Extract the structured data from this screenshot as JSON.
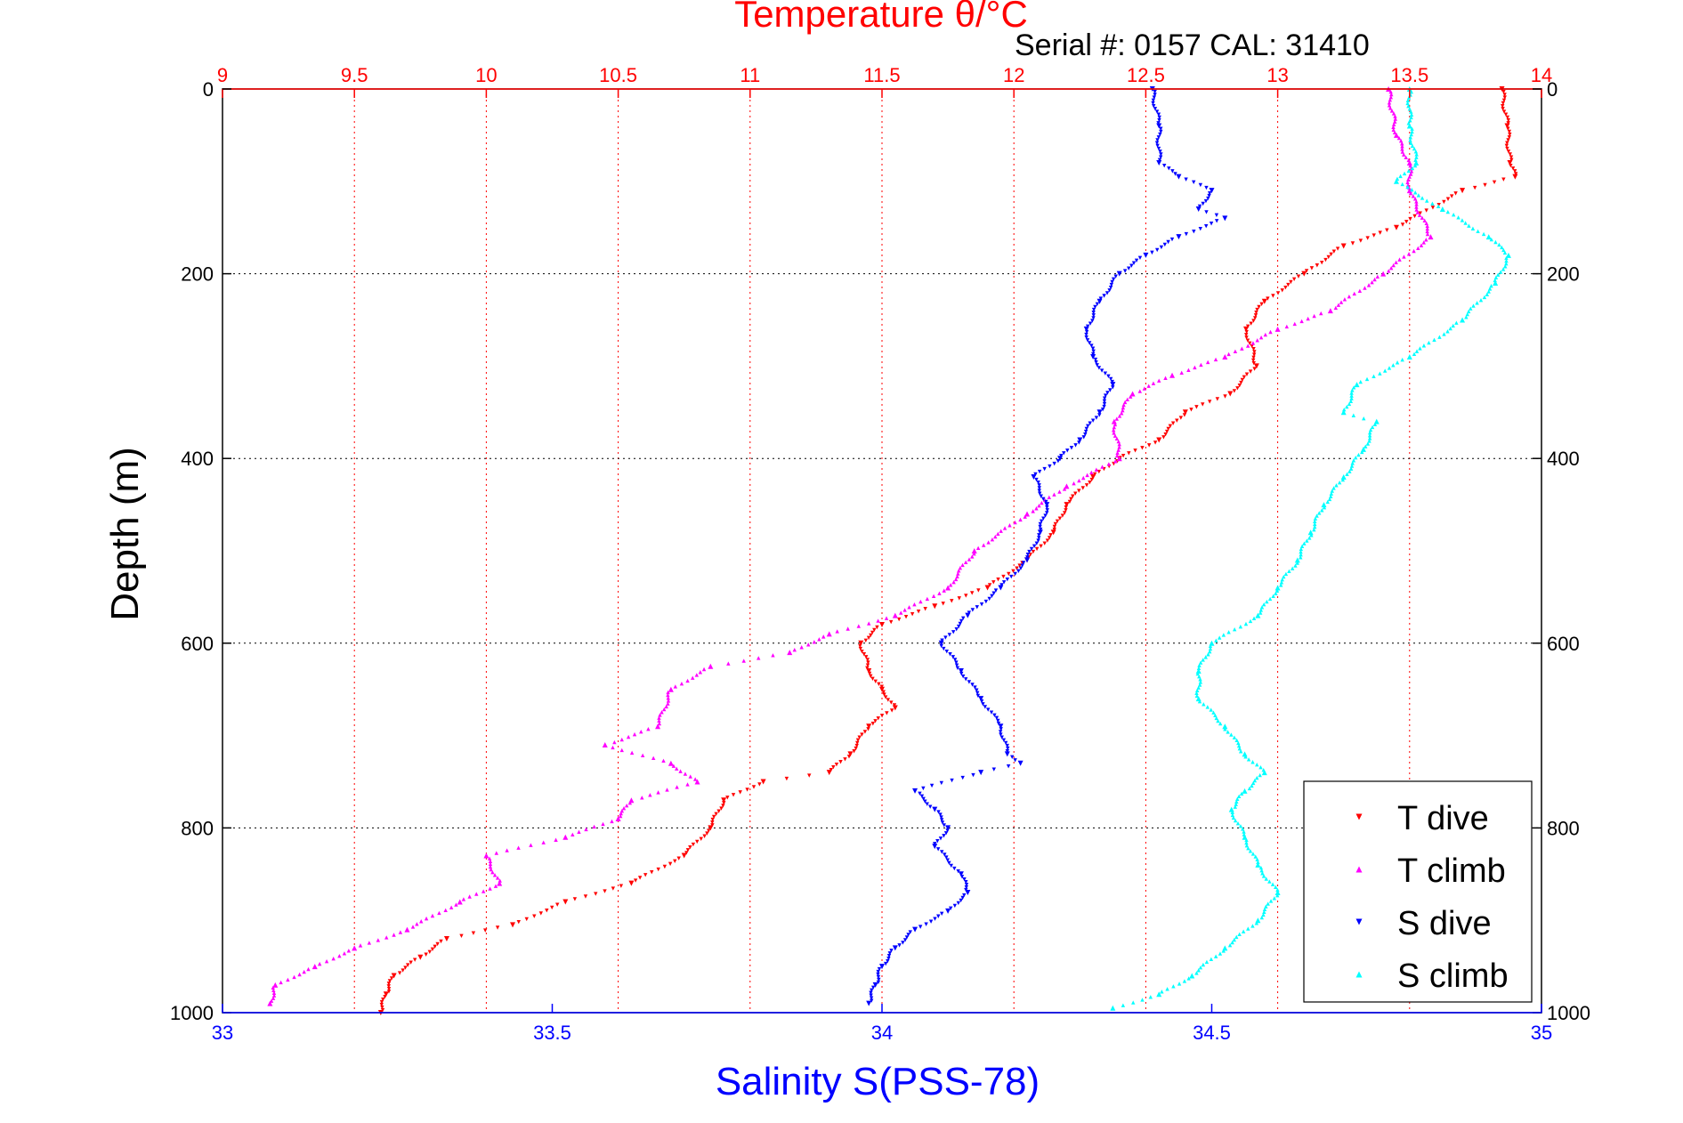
{
  "chart_data": {
    "type": "scatter",
    "title": "Temperature θ/°C",
    "subtitle": "Serial #: 0157  CAL: 31410",
    "ylabel": "Depth (m)",
    "xlabel_bottom": "Salinity S(PSS-78)",
    "temperature_axis": {
      "min": 9,
      "max": 14,
      "ticks": [
        "9",
        "9.5",
        "10",
        "10.5",
        "11",
        "11.5",
        "12",
        "12.5",
        "13",
        "13.5",
        "14"
      ]
    },
    "salinity_axis": {
      "min": 33,
      "max": 35,
      "ticks": [
        "33",
        "33.5",
        "34",
        "34.5",
        "35"
      ]
    },
    "depth_axis": {
      "min": 0,
      "max": 1000,
      "reversed": true,
      "ticks": [
        "0",
        "200",
        "400",
        "600",
        "800",
        "1000"
      ]
    },
    "grid": true,
    "legend": {
      "placement": "bottom-right"
    },
    "colors": {
      "t_dive": "#ff0000",
      "t_climb": "#ff00ff",
      "s_dive": "#0000ff",
      "s_climb": "#00ffff",
      "temp_axis": "#ff0000",
      "sal_axis": "#0000ff",
      "depth_axis": "#000000"
    },
    "series": [
      {
        "name": "T dive",
        "axis": "temperature",
        "color": "#ff0000",
        "marker": "triangle-down",
        "points": [
          [
            13.85,
            0
          ],
          [
            13.87,
            40
          ],
          [
            13.88,
            80
          ],
          [
            13.9,
            95
          ],
          [
            13.7,
            110
          ],
          [
            13.45,
            150
          ],
          [
            13.25,
            170
          ],
          [
            13.1,
            200
          ],
          [
            12.95,
            230
          ],
          [
            12.88,
            260
          ],
          [
            12.92,
            300
          ],
          [
            12.82,
            330
          ],
          [
            12.65,
            350
          ],
          [
            12.55,
            380
          ],
          [
            12.4,
            400
          ],
          [
            12.3,
            420
          ],
          [
            12.2,
            450
          ],
          [
            12.15,
            480
          ],
          [
            12.05,
            510
          ],
          [
            11.9,
            540
          ],
          [
            11.7,
            560
          ],
          [
            11.5,
            580
          ],
          [
            11.42,
            600
          ],
          [
            11.45,
            630
          ],
          [
            11.5,
            650
          ],
          [
            11.55,
            670
          ],
          [
            11.45,
            690
          ],
          [
            11.38,
            720
          ],
          [
            11.3,
            740
          ],
          [
            11.05,
            750
          ],
          [
            10.9,
            770
          ],
          [
            10.85,
            800
          ],
          [
            10.75,
            830
          ],
          [
            10.55,
            860
          ],
          [
            10.3,
            880
          ],
          [
            10.1,
            905
          ],
          [
            9.85,
            920
          ],
          [
            9.75,
            940
          ],
          [
            9.65,
            960
          ],
          [
            9.62,
            980
          ],
          [
            9.6,
            1000
          ]
        ]
      },
      {
        "name": "T climb",
        "axis": "temperature",
        "color": "#ff00ff",
        "marker": "triangle-up",
        "points": [
          [
            13.42,
            0
          ],
          [
            13.45,
            50
          ],
          [
            13.5,
            80
          ],
          [
            13.5,
            110
          ],
          [
            13.58,
            160
          ],
          [
            13.4,
            200
          ],
          [
            13.2,
            240
          ],
          [
            13.0,
            260
          ],
          [
            12.8,
            290
          ],
          [
            12.6,
            310
          ],
          [
            12.45,
            330
          ],
          [
            12.38,
            360
          ],
          [
            12.4,
            400
          ],
          [
            12.2,
            430
          ],
          [
            12.05,
            460
          ],
          [
            11.85,
            500
          ],
          [
            11.75,
            540
          ],
          [
            11.55,
            570
          ],
          [
            11.3,
            590
          ],
          [
            11.15,
            610
          ],
          [
            10.85,
            625
          ],
          [
            10.7,
            650
          ],
          [
            10.65,
            690
          ],
          [
            10.45,
            710
          ],
          [
            10.7,
            730
          ],
          [
            10.8,
            750
          ],
          [
            10.55,
            770
          ],
          [
            10.5,
            790
          ],
          [
            10.3,
            810
          ],
          [
            10.0,
            830
          ],
          [
            10.05,
            860
          ],
          [
            9.9,
            880
          ],
          [
            9.7,
            910
          ],
          [
            9.5,
            930
          ],
          [
            9.35,
            950
          ],
          [
            9.2,
            970
          ],
          [
            9.18,
            990
          ]
        ]
      },
      {
        "name": "S dive",
        "axis": "salinity",
        "color": "#0000ff",
        "marker": "triangle-down",
        "points": [
          [
            34.41,
            0
          ],
          [
            34.42,
            40
          ],
          [
            34.42,
            80
          ],
          [
            34.45,
            95
          ],
          [
            34.5,
            110
          ],
          [
            34.48,
            130
          ],
          [
            34.52,
            140
          ],
          [
            34.45,
            160
          ],
          [
            34.4,
            180
          ],
          [
            34.36,
            200
          ],
          [
            34.33,
            230
          ],
          [
            34.31,
            260
          ],
          [
            34.32,
            290
          ],
          [
            34.35,
            320
          ],
          [
            34.33,
            350
          ],
          [
            34.3,
            380
          ],
          [
            34.27,
            400
          ],
          [
            34.23,
            420
          ],
          [
            34.25,
            450
          ],
          [
            34.24,
            480
          ],
          [
            34.22,
            510
          ],
          [
            34.18,
            540
          ],
          [
            34.13,
            570
          ],
          [
            34.09,
            600
          ],
          [
            34.12,
            630
          ],
          [
            34.15,
            660
          ],
          [
            34.18,
            690
          ],
          [
            34.19,
            720
          ],
          [
            34.21,
            730
          ],
          [
            34.15,
            740
          ],
          [
            34.05,
            760
          ],
          [
            34.08,
            780
          ],
          [
            34.1,
            800
          ],
          [
            34.08,
            820
          ],
          [
            34.12,
            850
          ],
          [
            34.13,
            870
          ],
          [
            34.1,
            890
          ],
          [
            34.05,
            910
          ],
          [
            34.02,
            930
          ],
          [
            34.0,
            950
          ],
          [
            33.99,
            970
          ],
          [
            33.98,
            990
          ]
        ]
      },
      {
        "name": "S climb",
        "axis": "salinity",
        "color": "#00ffff",
        "marker": "triangle-up",
        "points": [
          [
            34.8,
            0
          ],
          [
            34.8,
            40
          ],
          [
            34.81,
            80
          ],
          [
            34.78,
            100
          ],
          [
            34.85,
            130
          ],
          [
            34.92,
            160
          ],
          [
            34.95,
            180
          ],
          [
            34.93,
            210
          ],
          [
            34.88,
            250
          ],
          [
            34.8,
            290
          ],
          [
            34.72,
            320
          ],
          [
            34.7,
            350
          ],
          [
            34.75,
            360
          ],
          [
            34.73,
            390
          ],
          [
            34.7,
            420
          ],
          [
            34.67,
            450
          ],
          [
            34.65,
            480
          ],
          [
            34.63,
            510
          ],
          [
            34.6,
            540
          ],
          [
            34.57,
            570
          ],
          [
            34.5,
            600
          ],
          [
            34.48,
            630
          ],
          [
            34.48,
            660
          ],
          [
            34.52,
            690
          ],
          [
            34.55,
            720
          ],
          [
            34.58,
            740
          ],
          [
            34.55,
            760
          ],
          [
            34.53,
            780
          ],
          [
            34.55,
            810
          ],
          [
            34.57,
            840
          ],
          [
            34.6,
            870
          ],
          [
            34.57,
            900
          ],
          [
            34.52,
            930
          ],
          [
            34.47,
            960
          ],
          [
            34.42,
            980
          ],
          [
            34.35,
            995
          ]
        ]
      }
    ]
  }
}
